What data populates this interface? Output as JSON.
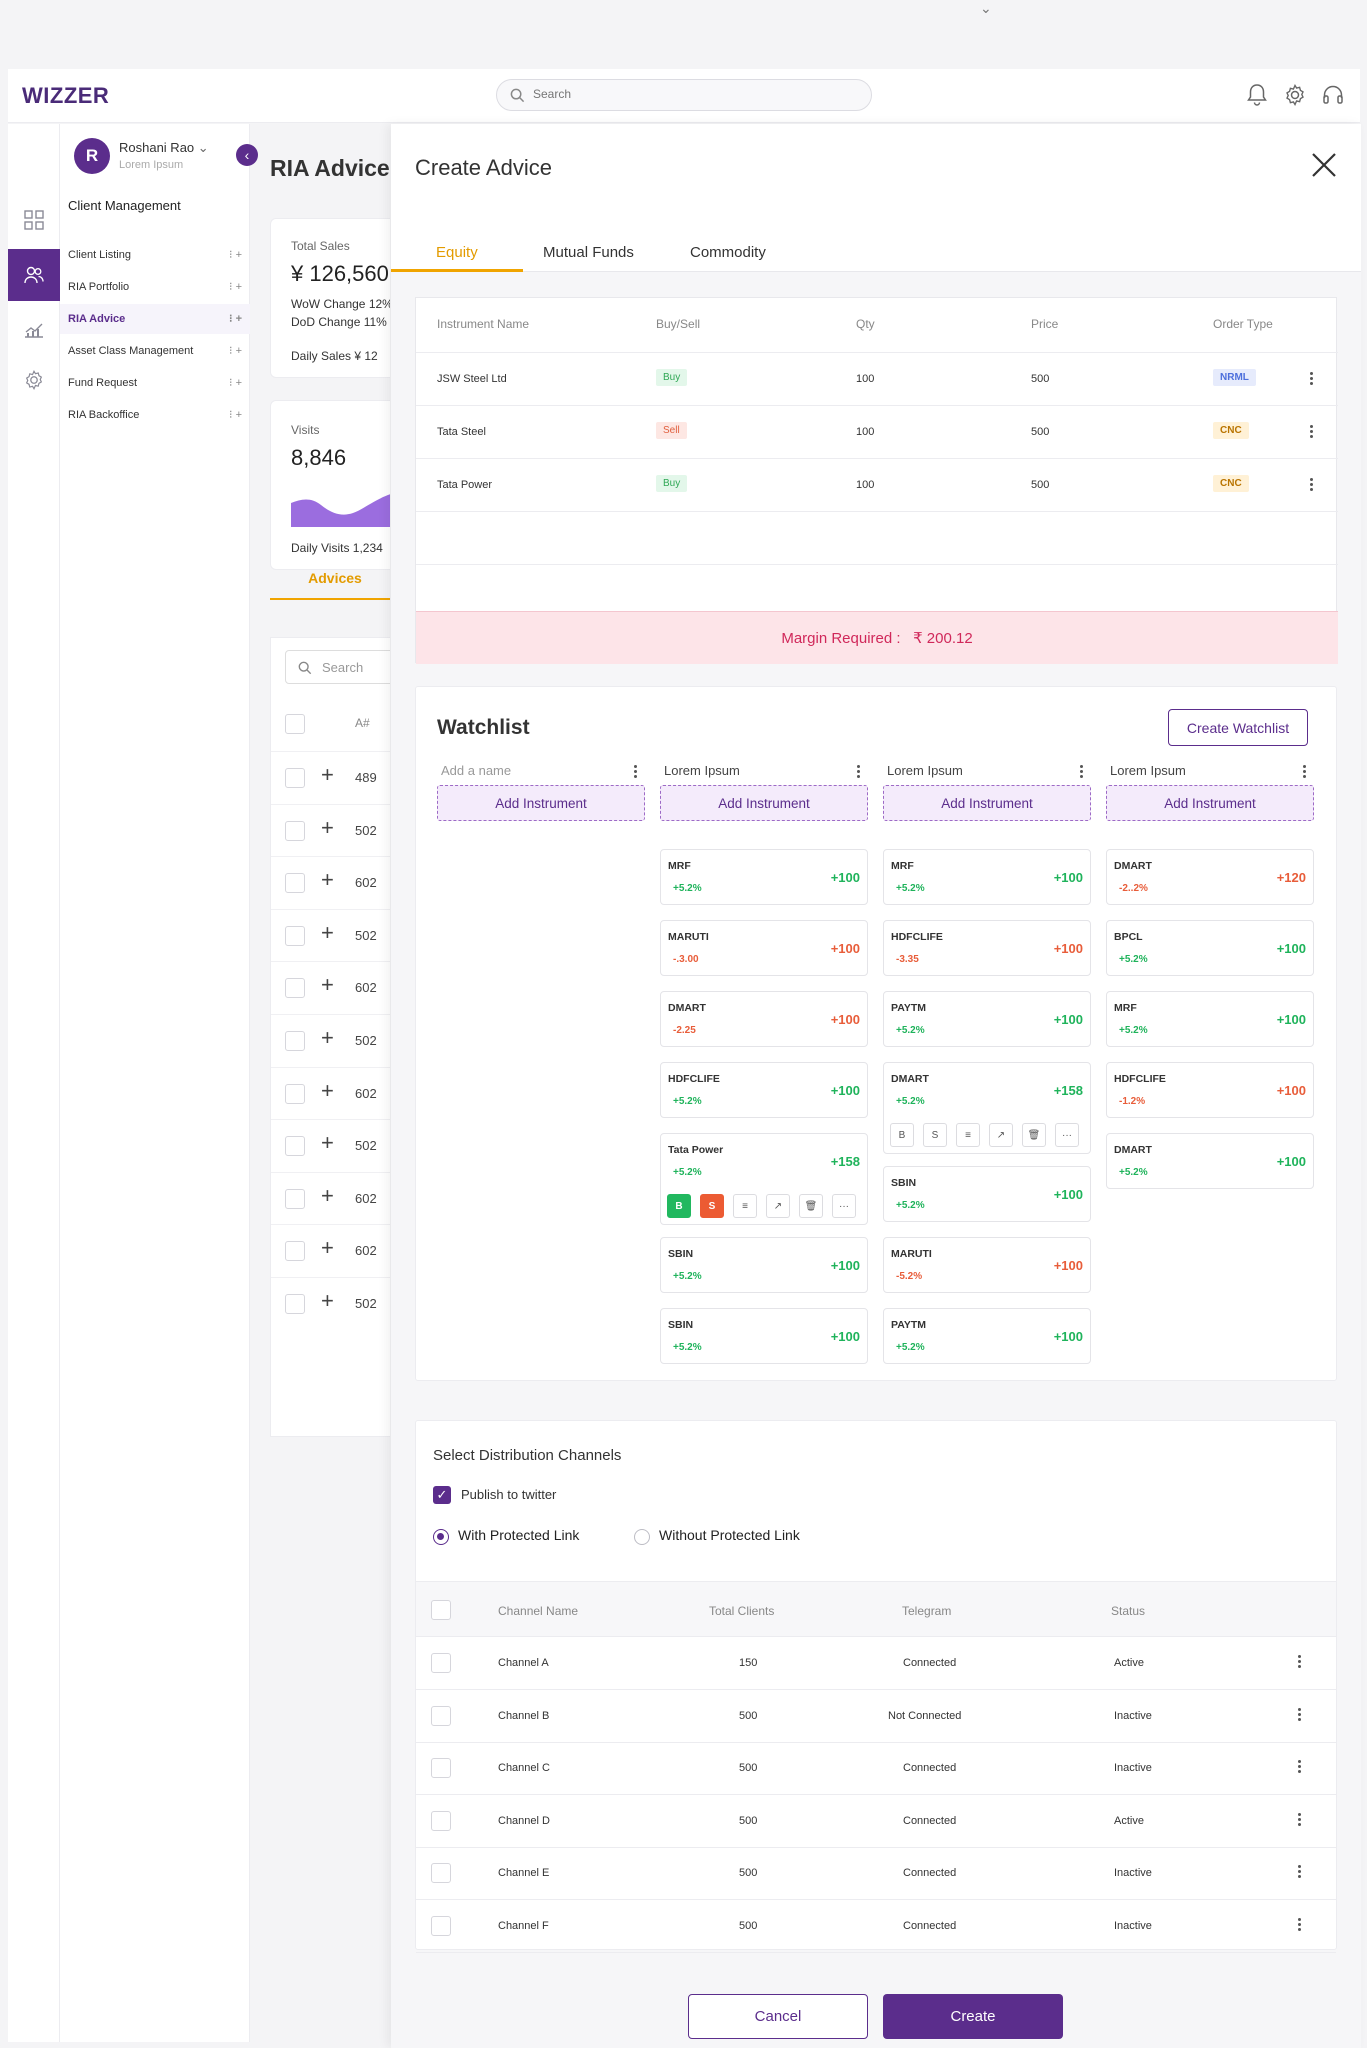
{
  "app": {
    "logo": "WIZZER",
    "search_placeholder": "Search"
  },
  "user": {
    "initial": "R",
    "name": "Roshani Rao",
    "subtitle": "Lorem Ipsum"
  },
  "sidebar": {
    "section_title": "Client Management",
    "items": [
      {
        "label": "Client Listing",
        "ops": "⁝ +"
      },
      {
        "label": "RIA Portfolio",
        "ops": "⁝ +"
      },
      {
        "label": "RIA Advice",
        "ops": "⁝ +"
      },
      {
        "label": "Asset Class Management",
        "ops": "⁝ +"
      },
      {
        "label": "Fund Request",
        "ops": "⁝ +"
      },
      {
        "label": "RIA Backoffice",
        "ops": "⁝ +"
      }
    ]
  },
  "background_page": {
    "title": "RIA Advice",
    "sales": {
      "label": "Total Sales",
      "value": "¥ 126,560",
      "wow": "WoW Change 12%",
      "dod": "DoD Change 11%",
      "daily": "Daily Sales  ¥ 12"
    },
    "visits": {
      "label": "Visits",
      "value": "8,846",
      "daily": "Daily Visits  1,234"
    },
    "tab": "Advices",
    "search_placeholder": "Search",
    "col_header": "A#",
    "row_numbers": [
      "489",
      "502",
      "602",
      "502",
      "602",
      "502",
      "602",
      "502",
      "602",
      "602",
      "502"
    ]
  },
  "panel": {
    "title": "Create Advice",
    "tabs": [
      "Equity",
      "Mutual Funds",
      "Commodity"
    ],
    "orders": {
      "headers": [
        "Instrument Name",
        "Buy/Sell",
        "Qty",
        "Price",
        "Order Type"
      ],
      "rows": [
        {
          "name": "JSW Steel Ltd",
          "side": "Buy",
          "qty": "100",
          "price": "500",
          "type": "NRML"
        },
        {
          "name": "Tata Steel",
          "side": "Sell",
          "qty": "100",
          "price": "500",
          "type": "CNC"
        },
        {
          "name": "Tata Power",
          "side": "Buy",
          "qty": "100",
          "price": "500",
          "type": "CNC"
        }
      ],
      "margin_label": "Margin Required :",
      "margin_value": "₹ 200.12"
    },
    "watchlist": {
      "title": "Watchlist",
      "create_button": "Create Watchlist",
      "add_instrument": "Add Instrument",
      "columns": [
        {
          "name": "Add a name",
          "placeholder": true,
          "items": []
        },
        {
          "name": "Lorem Ipsum",
          "items": [
            {
              "sym": "MRF",
              "chg": "+5.2%",
              "val": "+100",
              "dir": "up",
              "valdir": "up"
            },
            {
              "sym": "MARUTI",
              "chg": "-.3.00",
              "val": "+100",
              "dir": "dn",
              "valdir": "dn"
            },
            {
              "sym": "DMART",
              "chg": "-2.25",
              "val": "+100",
              "dir": "dn",
              "valdir": "dn"
            },
            {
              "sym": "HDFCLIFE",
              "chg": "+5.2%",
              "val": "+100",
              "dir": "up",
              "valdir": "up"
            },
            {
              "sym": "Tata Power",
              "chg": "+5.2%",
              "val": "+158",
              "dir": "up",
              "valdir": "up",
              "expanded": true,
              "actions": [
                "B",
                "S",
                "≡",
                "↗",
                "🗑",
                "···"
              ],
              "colored": true
            },
            {
              "sym": "SBIN",
              "chg": "+5.2%",
              "val": "+100",
              "dir": "up",
              "valdir": "up"
            },
            {
              "sym": "SBIN",
              "chg": "+5.2%",
              "val": "+100",
              "dir": "up",
              "valdir": "up"
            }
          ]
        },
        {
          "name": "Lorem Ipsum",
          "items": [
            {
              "sym": "MRF",
              "chg": "+5.2%",
              "val": "+100",
              "dir": "up",
              "valdir": "up"
            },
            {
              "sym": "HDFCLIFE",
              "chg": "-3.35",
              "val": "+100",
              "dir": "dn",
              "valdir": "dn"
            },
            {
              "sym": "PAYTM",
              "chg": "+5.2%",
              "val": "+100",
              "dir": "up",
              "valdir": "up"
            },
            {
              "sym": "DMART",
              "chg": "+5.2%",
              "val": "+158",
              "dir": "up",
              "valdir": "up",
              "expanded": true,
              "actions": [
                "B",
                "S",
                "≡",
                "↗",
                "🗑",
                "···"
              ],
              "colored": false
            },
            {
              "sym": "SBIN",
              "chg": "+5.2%",
              "val": "+100",
              "dir": "up",
              "valdir": "up"
            },
            {
              "sym": "MARUTI",
              "chg": "-5.2%",
              "val": "+100",
              "dir": "dn",
              "valdir": "dn"
            },
            {
              "sym": "PAYTM",
              "chg": "+5.2%",
              "val": "+100",
              "dir": "up",
              "valdir": "up"
            }
          ]
        },
        {
          "name": "Lorem Ipsum",
          "items": [
            {
              "sym": "DMART",
              "chg": "-2..2%",
              "val": "+120",
              "dir": "dn",
              "valdir": "dn"
            },
            {
              "sym": "BPCL",
              "chg": "+5.2%",
              "val": "+100",
              "dir": "up",
              "valdir": "up"
            },
            {
              "sym": "MRF",
              "chg": "+5.2%",
              "val": "+100",
              "dir": "up",
              "valdir": "up"
            },
            {
              "sym": "HDFCLIFE",
              "chg": "-1.2%",
              "val": "+100",
              "dir": "dn",
              "valdir": "dn"
            },
            {
              "sym": "DMART",
              "chg": "+5.2%",
              "val": "+100",
              "dir": "up",
              "valdir": "up"
            }
          ]
        }
      ]
    },
    "distribution": {
      "title": "Select Distribution Channels",
      "publish_label": "Publish to twitter",
      "radio_options": [
        "With Protected Link",
        "Without Protected Link"
      ],
      "selected_radio": "With Protected Link",
      "headers": [
        "Channel Name",
        "Total Clients",
        "Telegram",
        "Status"
      ],
      "rows": [
        {
          "name": "Channel A",
          "clients": "150",
          "telegram": "Connected",
          "status": "Active"
        },
        {
          "name": "Channel B",
          "clients": "500",
          "telegram": "Not Connected",
          "status": "Inactive"
        },
        {
          "name": "Channel C",
          "clients": "500",
          "telegram": "Connected",
          "status": "Inactive"
        },
        {
          "name": "Channel D",
          "clients": "500",
          "telegram": "Connected",
          "status": "Active"
        },
        {
          "name": "Channel E",
          "clients": "500",
          "telegram": "Connected",
          "status": "Inactive"
        },
        {
          "name": "Channel F",
          "clients": "500",
          "telegram": "Connected",
          "status": "Inactive"
        }
      ]
    },
    "footer": {
      "cancel": "Cancel",
      "create": "Create"
    }
  },
  "colors": {
    "brand": "#5b2d8c",
    "accent": "#f0a400",
    "up": "#1fb35b",
    "down": "#e85d3a"
  }
}
